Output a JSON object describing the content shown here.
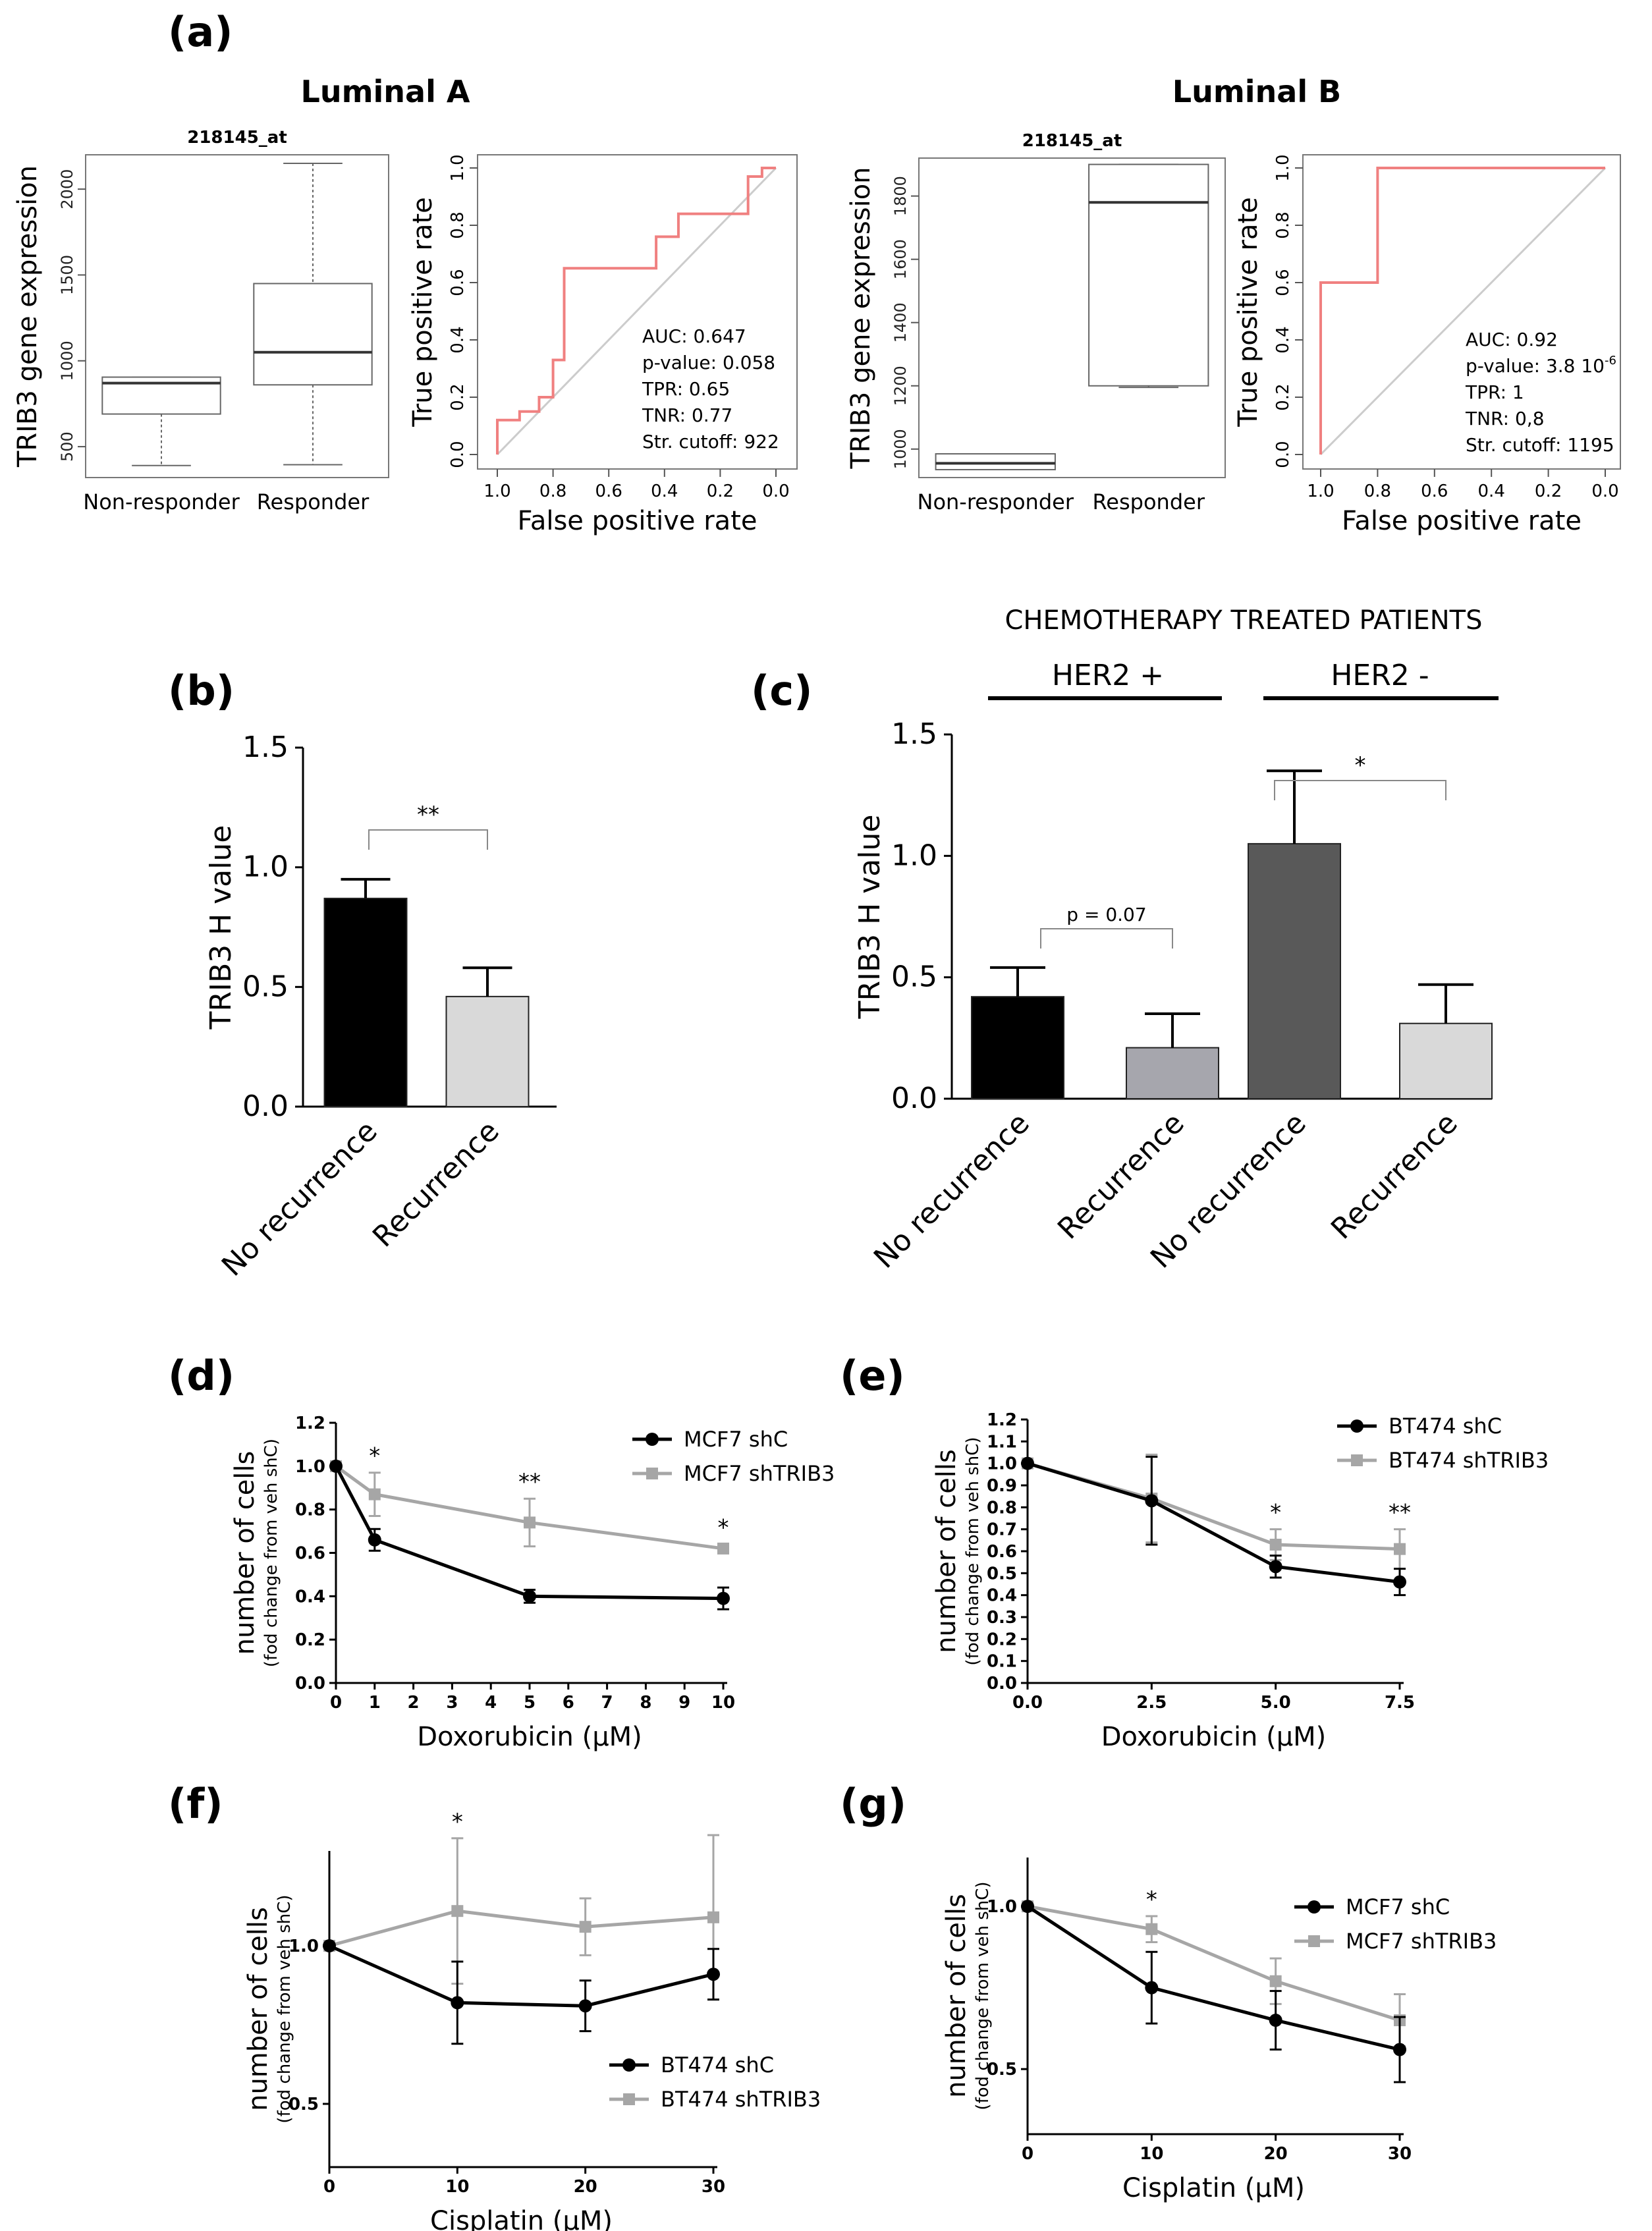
{
  "panels": {
    "a": "(a)",
    "b": "(b)",
    "c": "(c)",
    "d": "(d)",
    "e": "(e)",
    "f": "(f)",
    "g": "(g)"
  },
  "colors": {
    "black": "#000000",
    "grey": "#a6a6a6",
    "bar_black": "#000000",
    "bar_lightgrey": "#d9d9d9",
    "bar_midgrey": "#a6a6ad",
    "bar_darkgrey": "#595959",
    "roc_line": "#f08080",
    "diag": "#cccccc"
  },
  "chart_data": [
    {
      "id": "a-luminalA-box",
      "type": "box",
      "title": "Luminal A",
      "subtitle": "218145_at",
      "xlabel": "",
      "ylabel": "TRIB3 gene expression",
      "ylim": [
        320,
        2200
      ],
      "yticks": [
        500,
        1000,
        1500,
        2000
      ],
      "categories": [
        "Non-responder",
        "Responder"
      ],
      "boxes": [
        {
          "min": 390,
          "q1": 690,
          "median": 870,
          "q3": 905,
          "max": 905
        },
        {
          "min": 395,
          "q1": 860,
          "median": 1050,
          "q3": 1450,
          "max": 2150
        }
      ]
    },
    {
      "id": "a-luminalA-roc",
      "type": "line",
      "xlabel": "False positive rate",
      "ylabel": "True positive rate",
      "xlim": [
        1.0,
        0.0
      ],
      "ylim": [
        0.0,
        1.0
      ],
      "xticks": [
        "1.0",
        "0.8",
        "0.6",
        "0.4",
        "0.2",
        "0.0"
      ],
      "yticks": [
        "0.0",
        "0.2",
        "0.4",
        "0.6",
        "0.8",
        "1.0"
      ],
      "series": [
        {
          "x": [
            1.0,
            1.0,
            0.92,
            0.92,
            0.85,
            0.85,
            0.8,
            0.8,
            0.76,
            0.76,
            0.43,
            0.43,
            0.35,
            0.35,
            0.1,
            0.1,
            0.05,
            0.05,
            0.0
          ],
          "y": [
            0.0,
            0.12,
            0.12,
            0.15,
            0.15,
            0.2,
            0.2,
            0.33,
            0.33,
            0.65,
            0.65,
            0.76,
            0.76,
            0.84,
            0.84,
            0.97,
            0.97,
            1.0,
            1.0
          ]
        }
      ],
      "stats": [
        "AUC: 0.647",
        "p-value: 0.058",
        "TPR: 0.65",
        "TNR: 0.77",
        "Str. cutoff: 922"
      ]
    },
    {
      "id": "a-luminalB-box",
      "type": "box",
      "title": "Luminal B",
      "subtitle": "218145_at",
      "xlabel": "",
      "ylabel": "TRIB3 gene expression",
      "ylim": [
        910,
        1920
      ],
      "yticks": [
        1000,
        1200,
        1400,
        1600,
        1800
      ],
      "categories": [
        "Non-responder",
        "Responder"
      ],
      "boxes": [
        {
          "min": 935,
          "q1": 935,
          "median": 955,
          "q3": 985,
          "max": 985
        },
        {
          "min": 1195,
          "q1": 1200,
          "median": 1780,
          "q3": 1900,
          "max": 1900
        }
      ]
    },
    {
      "id": "a-luminalB-roc",
      "type": "line",
      "xlabel": "False positive rate",
      "ylabel": "True positive rate",
      "xlim": [
        1.0,
        0.0
      ],
      "ylim": [
        0.0,
        1.0
      ],
      "xticks": [
        "1.0",
        "0.8",
        "0.6",
        "0.4",
        "0.2",
        "0.0"
      ],
      "yticks": [
        "0.0",
        "0.2",
        "0.4",
        "0.6",
        "0.8",
        "1.0"
      ],
      "series": [
        {
          "x": [
            1.0,
            1.0,
            0.8,
            0.8,
            0.0
          ],
          "y": [
            0.0,
            0.6,
            0.6,
            1.0,
            1.0
          ]
        }
      ],
      "stats": [
        "AUC: 0.92",
        "p-value: 3.8 10-6",
        "TPR: 1",
        "TNR: 0,8",
        "Str. cutoff: 1195"
      ]
    },
    {
      "id": "b",
      "type": "bar",
      "ylabel": "TRIB3 H value",
      "ylim": [
        0.0,
        1.5
      ],
      "yticks": [
        "0.0",
        "0.5",
        "1.0",
        "1.5"
      ],
      "categories": [
        "No recurrence",
        "Recurrence"
      ],
      "values": [
        0.87,
        0.46
      ],
      "errors": [
        0.08,
        0.12
      ],
      "significance": "**"
    },
    {
      "id": "c",
      "type": "bar",
      "title": "CHEMOTHERAPY TREATED PATIENTS",
      "groups": [
        "HER2 +",
        "HER2 -"
      ],
      "ylabel": "TRIB3 H value",
      "ylim": [
        0.0,
        1.5
      ],
      "yticks": [
        "0.0",
        "0.5",
        "1.0",
        "1.5"
      ],
      "categories": [
        "No recurrence",
        "Recurrence",
        "No recurrence",
        "Recurrence"
      ],
      "values": [
        0.42,
        0.21,
        1.05,
        0.31
      ],
      "errors": [
        0.12,
        0.14,
        0.3,
        0.16
      ],
      "annotations": [
        "p = 0.07",
        "*"
      ]
    },
    {
      "id": "d",
      "type": "line",
      "xlabel": "Doxorubicin (µM)",
      "ylabel": "number of cells",
      "ylabel2": "(fod change from veh shC)",
      "xlim": [
        0,
        10
      ],
      "ylim": [
        0.0,
        1.2
      ],
      "xticks": [
        "0",
        "1",
        "2",
        "3",
        "4",
        "5",
        "6",
        "7",
        "8",
        "9",
        "10"
      ],
      "yticks": [
        "0.0",
        "0.2",
        "0.4",
        "0.6",
        "0.8",
        "1.0",
        "1.2"
      ],
      "x": [
        0,
        1,
        5,
        10
      ],
      "series": [
        {
          "name": "MCF7 shC",
          "values": [
            1.0,
            0.66,
            0.4,
            0.39
          ],
          "errors": [
            0.0,
            0.05,
            0.03,
            0.05
          ]
        },
        {
          "name": "MCF7 shTRIB3",
          "values": [
            1.0,
            0.87,
            0.74,
            0.62
          ],
          "errors": [
            0.0,
            0.1,
            0.11,
            0.02
          ]
        }
      ],
      "stars": [
        {
          "x": 1,
          "label": "*"
        },
        {
          "x": 5,
          "label": "**"
        },
        {
          "x": 10,
          "label": "*"
        }
      ]
    },
    {
      "id": "e",
      "type": "line",
      "xlabel": "Doxorubicin (µM)",
      "ylabel": "number of cells",
      "ylabel2": "(fod change from veh shC)",
      "xlim": [
        0,
        7.5
      ],
      "ylim": [
        0.0,
        1.2
      ],
      "xticks": [
        "0.0",
        "2.5",
        "5.0",
        "7.5"
      ],
      "yticks": [
        "0.0",
        "0.1",
        "0.2",
        "0.3",
        "0.4",
        "0.5",
        "0.6",
        "0.7",
        "0.8",
        "0.9",
        "1.0",
        "1.1",
        "1.2"
      ],
      "x": [
        0,
        2.5,
        5,
        7.5
      ],
      "series": [
        {
          "name": "BT474 shC",
          "values": [
            1.0,
            0.83,
            0.53,
            0.46
          ],
          "errors": [
            0.0,
            0.2,
            0.05,
            0.06
          ]
        },
        {
          "name": "BT474 shTRIB3",
          "values": [
            1.0,
            0.84,
            0.63,
            0.61
          ],
          "errors": [
            0.0,
            0.2,
            0.07,
            0.09
          ]
        }
      ],
      "stars": [
        {
          "x": 5,
          "label": "*"
        },
        {
          "x": 7.5,
          "label": "**"
        }
      ]
    },
    {
      "id": "f",
      "type": "line",
      "xlabel": "Cisplatin (µM)",
      "ylabel": "number of cells",
      "ylabel2": "(fod change from veh shC)",
      "xlim": [
        0,
        30
      ],
      "ylim": [
        0.3,
        1.3
      ],
      "xticks": [
        "0",
        "10",
        "20",
        "30"
      ],
      "yticks": [
        "0.5",
        "1.0"
      ],
      "x": [
        0,
        10,
        20,
        30
      ],
      "series": [
        {
          "name": "BT474 shC",
          "values": [
            1.0,
            0.82,
            0.81,
            0.91
          ],
          "errors": [
            0.0,
            0.13,
            0.08,
            0.08
          ]
        },
        {
          "name": "BT474 shTRIB3",
          "values": [
            1.0,
            1.11,
            1.06,
            1.09
          ],
          "errors": [
            0.0,
            0.23,
            0.09,
            0.26
          ]
        }
      ],
      "stars": [
        {
          "x": 10,
          "label": "*"
        }
      ]
    },
    {
      "id": "g",
      "type": "line",
      "xlabel": "Cisplatin (µM)",
      "ylabel": "number of cells",
      "ylabel2": "(fod change from veh shC)",
      "xlim": [
        0,
        30
      ],
      "ylim": [
        0.3,
        1.15
      ],
      "xticks": [
        "0",
        "10",
        "20",
        "30"
      ],
      "yticks": [
        "0.5",
        "1.0"
      ],
      "x": [
        0,
        10,
        20,
        30
      ],
      "series": [
        {
          "name": "MCF7 shC",
          "values": [
            1.0,
            0.75,
            0.65,
            0.56
          ],
          "errors": [
            0.0,
            0.11,
            0.09,
            0.1
          ]
        },
        {
          "name": "MCF7 shTRIB3",
          "values": [
            1.0,
            0.93,
            0.77,
            0.65
          ],
          "errors": [
            0.0,
            0.04,
            0.07,
            0.08
          ]
        }
      ],
      "stars": [
        {
          "x": 10,
          "label": "*"
        }
      ]
    }
  ]
}
